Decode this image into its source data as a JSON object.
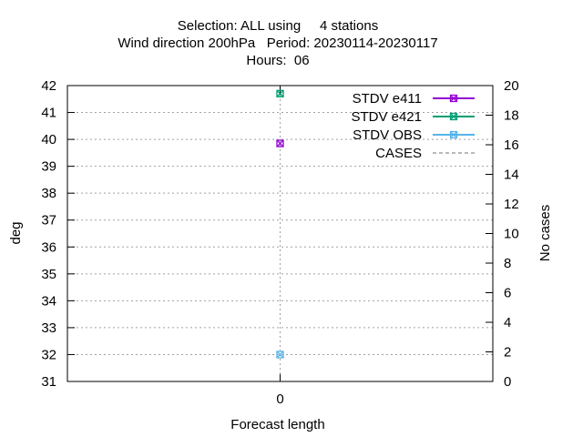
{
  "chart_data": {
    "type": "scatter",
    "title_lines": [
      "Selection: ALL using     4 stations",
      "Wind direction 200hPa   Period: 20230114-20230117",
      "Hours:  06"
    ],
    "xlabel": "Forecast length",
    "ylabel": "deg",
    "y2label": "No cases",
    "x_ticks": [
      "0"
    ],
    "x_range": [
      -1,
      1
    ],
    "ylim": [
      31,
      42
    ],
    "y_ticks": [
      31,
      32,
      33,
      34,
      35,
      36,
      37,
      38,
      39,
      40,
      41,
      42
    ],
    "y2lim": [
      0,
      20
    ],
    "y2_ticks": [
      0,
      2,
      4,
      6,
      8,
      10,
      12,
      14,
      16,
      18,
      20
    ],
    "grid": true,
    "legend_position": "top-right",
    "series": [
      {
        "name": "STDV e411",
        "color": "#9400d3",
        "marker": "x-box",
        "axis": "y",
        "points": [
          {
            "x": 0,
            "y": 39.85
          }
        ]
      },
      {
        "name": "STDV e421",
        "color": "#009e73",
        "marker": "x-box",
        "axis": "y",
        "points": [
          {
            "x": 0,
            "y": 41.7
          }
        ]
      },
      {
        "name": "STDV OBS",
        "color": "#56b4e9",
        "marker": "x-box",
        "axis": "y",
        "points": [
          {
            "x": 0,
            "y": 32.0
          }
        ]
      },
      {
        "name": "CASES",
        "color": "#a0a0a0",
        "marker": "none",
        "dash": true,
        "axis": "y2",
        "points": []
      }
    ]
  }
}
